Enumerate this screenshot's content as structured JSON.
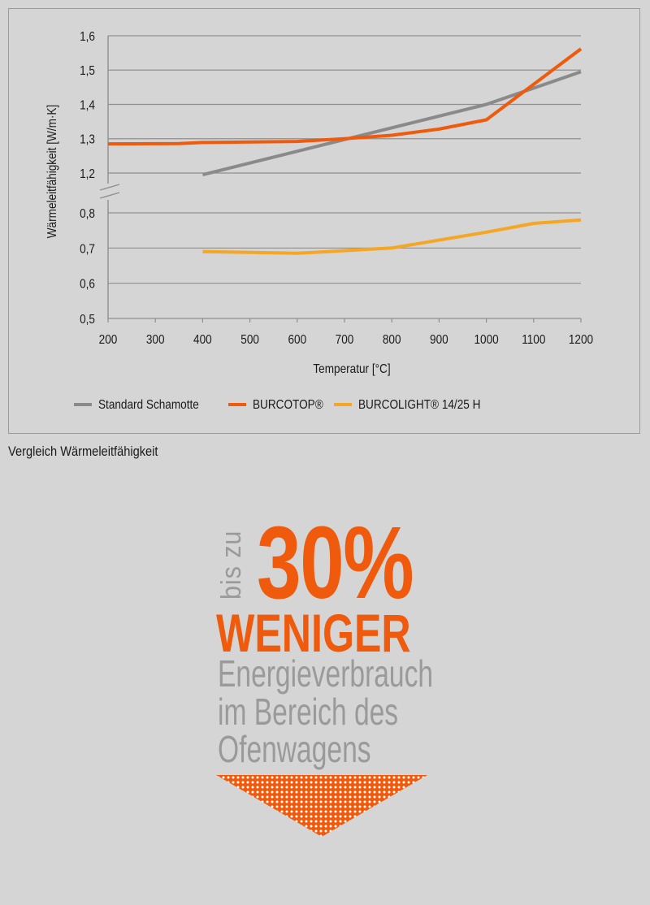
{
  "chart_data": {
    "type": "line",
    "title": "",
    "xlabel": "Temperatur [°C]",
    "ylabel": "Wärmeleitfähigkeit [W/m·K]",
    "x_ticks": [
      "200",
      "300",
      "400",
      "500",
      "600",
      "700",
      "800",
      "900",
      "1000",
      "1100",
      "1200"
    ],
    "y_ticks_upper": [
      "1,2",
      "1,3",
      "1,4",
      "1,5",
      "1,6"
    ],
    "y_ticks_lower": [
      "0,5",
      "0,6",
      "0,7",
      "0,8"
    ],
    "xlim": [
      200,
      1200
    ],
    "ylim_upper": [
      1.2,
      1.6
    ],
    "ylim_lower": [
      0.5,
      0.8
    ],
    "axis_break": true,
    "grid": true,
    "legend_position": "bottom",
    "series": [
      {
        "name": "Standard Schamotte",
        "color": "#8a8a8a",
        "points": [
          [
            400,
            1.195
          ],
          [
            1000,
            1.4
          ],
          [
            1200,
            1.495
          ]
        ]
      },
      {
        "name": "BURCOTOP®",
        "color": "#ef5a0d",
        "points": [
          [
            200,
            1.285
          ],
          [
            350,
            1.286
          ],
          [
            400,
            1.289
          ],
          [
            600,
            1.292
          ],
          [
            700,
            1.3
          ],
          [
            800,
            1.31
          ],
          [
            900,
            1.328
          ],
          [
            1000,
            1.355
          ],
          [
            1200,
            1.562
          ]
        ]
      },
      {
        "name": "BURCOLIGHT® 14/25 H",
        "color": "#f5a623",
        "points": [
          [
            400,
            0.69
          ],
          [
            600,
            0.685
          ],
          [
            800,
            0.7
          ],
          [
            1000,
            0.745
          ],
          [
            1100,
            0.77
          ],
          [
            1200,
            0.78
          ]
        ]
      }
    ]
  },
  "caption": "Vergleich Wärmeleitfähigkeit",
  "infographic": {
    "prefix": "bis zu",
    "percent": "30%",
    "headline": "WENIGER",
    "lines": [
      "Energieverbrauch",
      "im Bereich des",
      "Ofenwagens"
    ],
    "accent_color": "#ef5a0d",
    "muted_color": "#9a9a9a"
  }
}
